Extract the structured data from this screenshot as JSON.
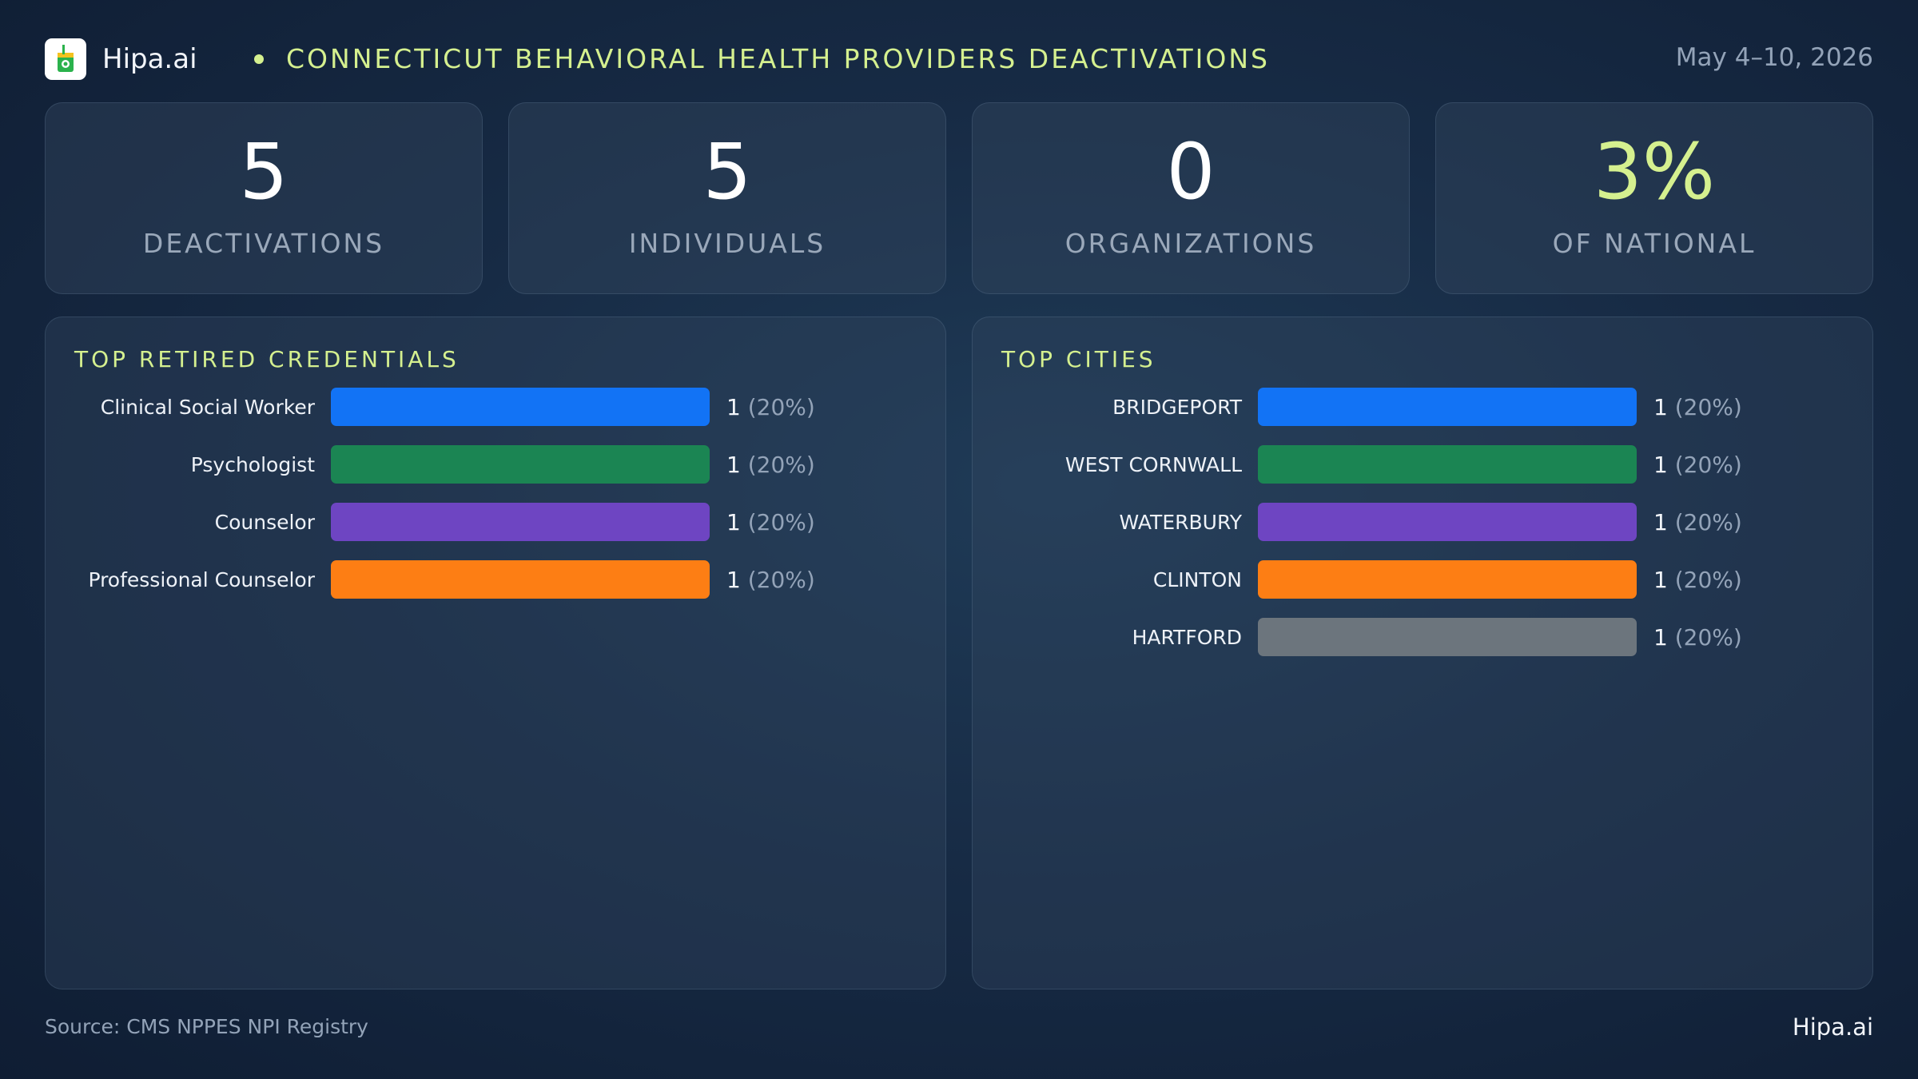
{
  "header": {
    "brand": "Hipa.ai",
    "title": "Connecticut Behavioral Health Providers Deactivations",
    "date": "May 4–10, 2026"
  },
  "kpis": [
    {
      "value": "5",
      "label": "Deactivations"
    },
    {
      "value": "5",
      "label": "Individuals"
    },
    {
      "value": "0",
      "label": "Organizations"
    },
    {
      "value": "3%",
      "label": "of National"
    }
  ],
  "colors": {
    "accent": "#d5f08f",
    "bar_palette": [
      "#1273f5",
      "#1b8553",
      "#6e45c2",
      "#fd7e14",
      "#6c757d"
    ]
  },
  "chart_data": [
    {
      "type": "bar",
      "orientation": "horizontal",
      "title": "Top Retired Credentials",
      "categories": [
        "Clinical Social Worker",
        "Psychologist",
        "Counselor",
        "Professional Counselor"
      ],
      "values": [
        1,
        1,
        1,
        1
      ],
      "value_labels": [
        "1",
        "1",
        "1",
        "1"
      ],
      "pct_labels": [
        "(20%)",
        "(20%)",
        "(20%)",
        "(20%)"
      ],
      "xlim": [
        0,
        1
      ]
    },
    {
      "type": "bar",
      "orientation": "horizontal",
      "title": "Top Cities",
      "categories": [
        "BRIDGEPORT",
        "WEST CORNWALL",
        "WATERBURY",
        "CLINTON",
        "HARTFORD"
      ],
      "values": [
        1,
        1,
        1,
        1,
        1
      ],
      "value_labels": [
        "1",
        "1",
        "1",
        "1",
        "1"
      ],
      "pct_labels": [
        "(20%)",
        "(20%)",
        "(20%)",
        "(20%)",
        "(20%)"
      ],
      "xlim": [
        0,
        1
      ]
    }
  ],
  "footer": {
    "source": "Source: CMS NPPES NPI Registry",
    "brand": "Hipa.ai"
  }
}
